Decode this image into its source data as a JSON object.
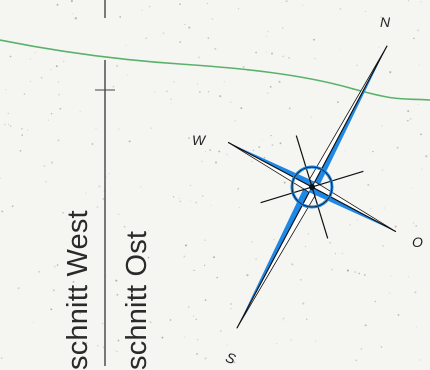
{
  "map": {
    "section_labels": [
      "schnitt West",
      "schnitt Ost"
    ],
    "compass": {
      "north": "N",
      "east": "O",
      "south": "S",
      "west": "W",
      "accent_color": "#1e88e5"
    },
    "road_color": "#59b26a"
  }
}
